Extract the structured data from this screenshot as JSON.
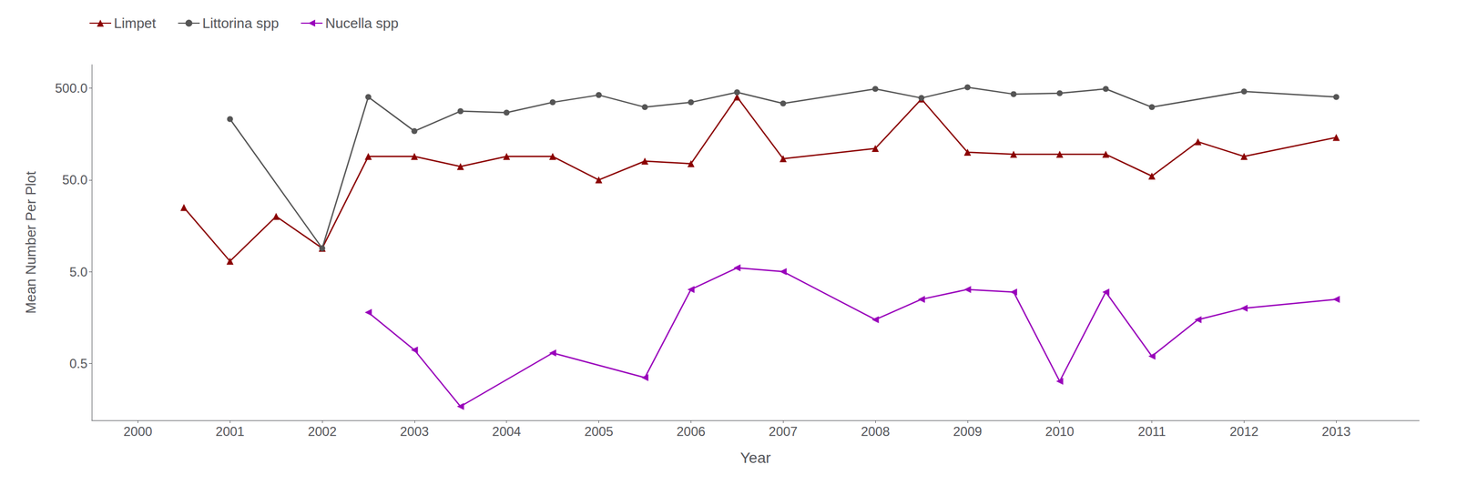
{
  "chart_data": {
    "type": "line",
    "log": "y",
    "grid": false,
    "legend": "upper left",
    "xlabel": "Year",
    "ylabel": "Mean Number Per Plot",
    "xlim": [
      1999.5,
      2013.9
    ],
    "xticks": [
      2000,
      2001,
      2002,
      2003,
      2004,
      2005,
      2006,
      2007,
      2008,
      2009,
      2010,
      2011,
      2012,
      2013
    ],
    "ylim": [
      0.12,
      900
    ],
    "yticks": [
      0.5,
      {
        "value": 5.0,
        "label": "5.0"
      },
      {
        "value": 50.0,
        "label": "50.0"
      },
      {
        "value": 500.0,
        "label": "500.0"
      }
    ],
    "series": [
      {
        "name": "Limpet",
        "color": "#8B0000",
        "marker": "triangle-up",
        "line_style": "solid",
        "x": [
          2000.5,
          2001.0,
          2001.5,
          2002.0,
          2002.5,
          2003.0,
          2003.5,
          2004.0,
          2004.5,
          2005.0,
          2005.5,
          2006.0,
          2006.5,
          2007.0,
          2008.0,
          2008.5,
          2009.0,
          2009.5,
          2010.0,
          2010.5,
          2011.0,
          2011.5,
          2012.0,
          2013.0
        ],
        "values": [
          25,
          6.5,
          20,
          9,
          90,
          90,
          70,
          90,
          90,
          50,
          80,
          75,
          400,
          85,
          110,
          380,
          100,
          95,
          95,
          95,
          55,
          130,
          90,
          145
        ]
      },
      {
        "name": "Littorina spp",
        "color": "#555555",
        "marker": "circle",
        "line_style": "solid",
        "x": [
          2001.0,
          2002.0,
          2002.5,
          2003.0,
          2003.5,
          2004.0,
          2004.5,
          2005.0,
          2005.5,
          2006.0,
          2006.5,
          2007.0,
          2008.0,
          2008.5,
          2009.0,
          2009.5,
          2010.0,
          2010.5,
          2011.0,
          2012.0,
          2013.0
        ],
        "values": [
          230,
          9,
          400,
          170,
          280,
          270,
          350,
          420,
          310,
          350,
          450,
          340,
          490,
          390,
          510,
          430,
          440,
          490,
          310,
          460,
          400
        ]
      },
      {
        "name": "Nucella spp",
        "color": "#9900BB",
        "marker": "triangle-left",
        "line_style": "solid",
        "x": [
          2002.5,
          2003.0,
          2003.5,
          2004.5,
          2005.5,
          2006.0,
          2006.5,
          2007.0,
          2008.0,
          2008.5,
          2009.0,
          2009.5,
          2010.0,
          2010.5,
          2011.0,
          2011.5,
          2012.0,
          2013.0
        ],
        "values": [
          1.8,
          0.7,
          0.17,
          0.65,
          0.35,
          3.2,
          5.5,
          5.0,
          1.5,
          2.5,
          3.2,
          3.0,
          0.32,
          3.0,
          0.6,
          1.5,
          2.0,
          2.5
        ]
      }
    ]
  }
}
